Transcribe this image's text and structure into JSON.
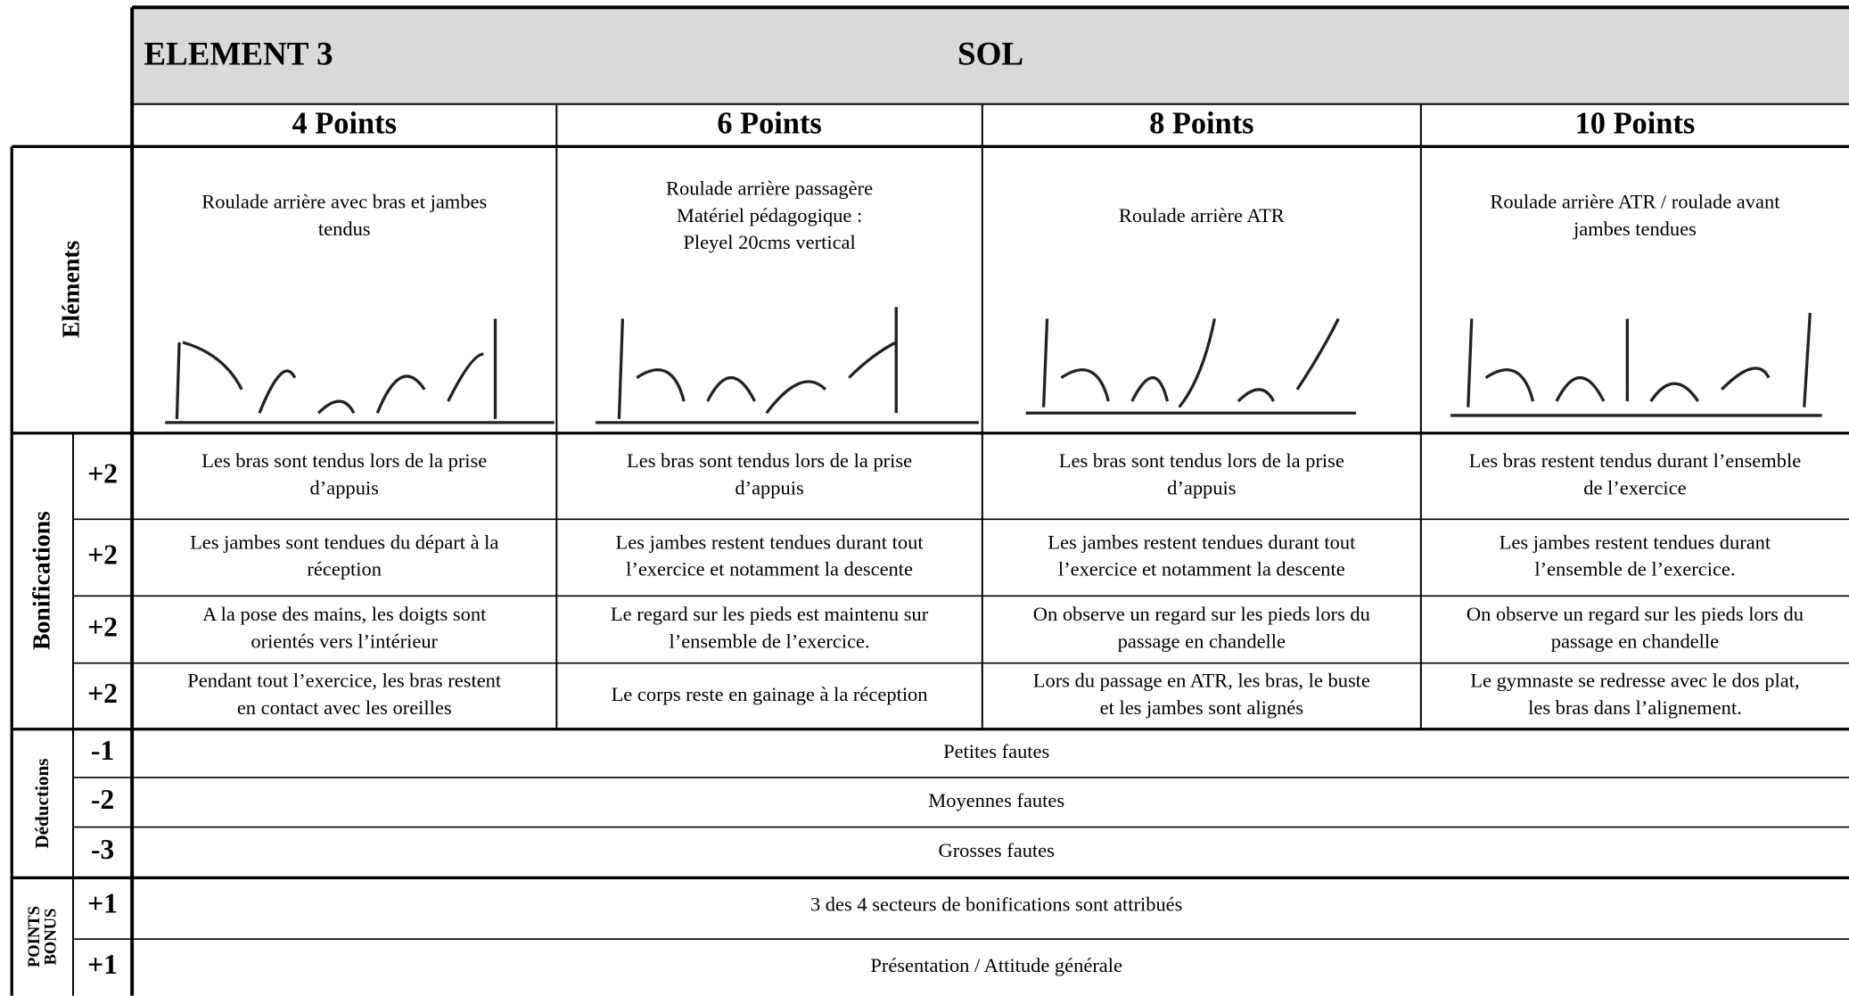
{
  "header": {
    "element": "ELEMENT 3",
    "title": "SOL"
  },
  "columns": [
    "4 Points",
    "6 Points",
    "8 Points",
    "10 Points"
  ],
  "elements": {
    "label": "Eléments",
    "descriptions": [
      [
        "Roulade arrière avec bras et jambes",
        "tendus"
      ],
      [
        "Roulade arrière passagère",
        "Matériel pédagogique :",
        "Pleyel 20cms vertical"
      ],
      [
        "Roulade arrière ATR"
      ],
      [
        "Roulade arrière ATR / roulade avant",
        "jambes tendues"
      ]
    ]
  },
  "bonifications": {
    "label": "Bonifications",
    "rows": [
      {
        "points": "+2",
        "cells": [
          [
            "Les bras sont tendus lors de la prise",
            "d’appuis"
          ],
          [
            "Les bras sont tendus lors de la prise",
            "d’appuis"
          ],
          [
            "Les bras sont tendus lors de la prise",
            "d’appuis"
          ],
          [
            "Les bras restent tendus durant l’ensemble",
            "de l’exercice"
          ]
        ]
      },
      {
        "points": "+2",
        "cells": [
          [
            "Les jambes sont tendues du départ à la",
            "réception"
          ],
          [
            "Les jambes restent tendues durant tout",
            "l’exercice et notamment la descente"
          ],
          [
            "Les jambes restent tendues durant tout",
            "l’exercice et notamment la descente"
          ],
          [
            "Les jambes restent tendues durant",
            "l’ensemble de l’exercice."
          ]
        ]
      },
      {
        "points": "+2",
        "cells": [
          [
            "A la pose des mains, les doigts sont",
            "orientés vers l’intérieur"
          ],
          [
            "Le regard sur les pieds est maintenu sur",
            "l’ensemble de l’exercice."
          ],
          [
            "On observe un regard sur les pieds lors du",
            "passage en chandelle"
          ],
          [
            "On observe un regard sur les pieds lors du",
            "passage en chandelle"
          ]
        ]
      },
      {
        "points": "+2",
        "cells": [
          [
            "Pendant tout l’exercice,  les bras restent",
            "en contact avec les oreilles"
          ],
          [
            "Le corps reste en gainage à la réception"
          ],
          [
            "Lors du passage en ATR, les bras, le buste",
            "et les jambes sont alignés"
          ],
          [
            "Le gymnaste se redresse avec le dos plat,",
            "les bras dans l’alignement."
          ]
        ]
      }
    ]
  },
  "deductions": {
    "label": "Déductions",
    "rows": [
      {
        "points": "-1",
        "text": "Petites fautes"
      },
      {
        "points": "-2",
        "text": "Moyennes fautes"
      },
      {
        "points": "-3",
        "text": "Grosses fautes"
      }
    ]
  },
  "points_bonus": {
    "label": [
      "POINTS",
      "BONUS"
    ],
    "rows": [
      {
        "points": "+1",
        "text": "3 des 4 secteurs de bonifications sont attribués"
      },
      {
        "points": "+1",
        "text": "Présentation / Attitude générale"
      }
    ]
  }
}
